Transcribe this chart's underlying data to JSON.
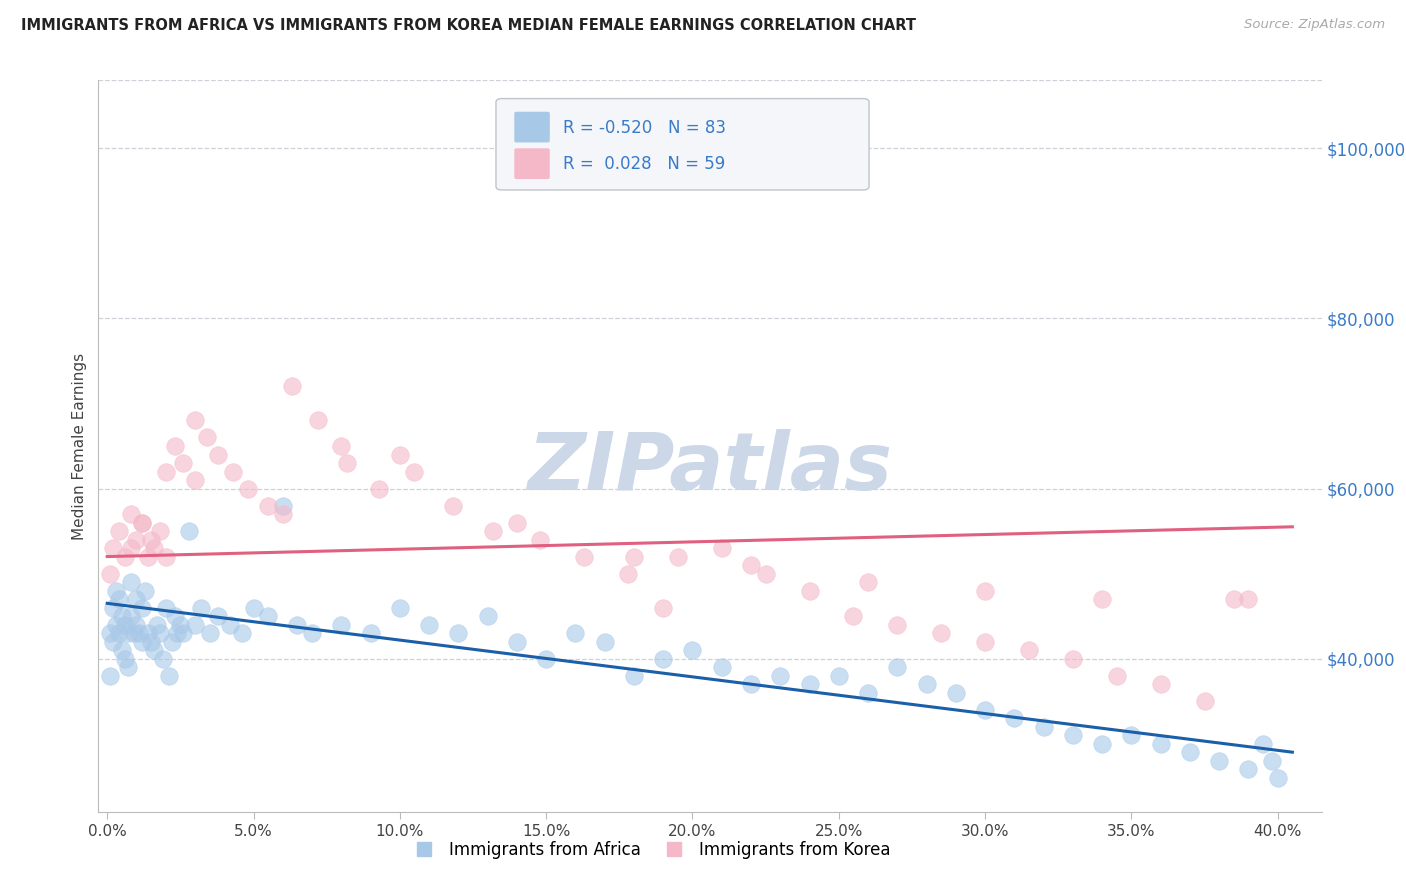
{
  "title": "IMMIGRANTS FROM AFRICA VS IMMIGRANTS FROM KOREA MEDIAN FEMALE EARNINGS CORRELATION CHART",
  "source": "Source: ZipAtlas.com",
  "ylabel": "Median Female Earnings",
  "xlim": [
    -0.003,
    0.415
  ],
  "ylim": [
    22000,
    108000
  ],
  "africa_R": -0.52,
  "africa_N": 83,
  "korea_R": 0.028,
  "korea_N": 59,
  "africa_color": "#a8c8e8",
  "korea_color": "#f4b8c8",
  "africa_line_color": "#1a5fa8",
  "korea_line_color": "#e06080",
  "watermark_text": "ZIPatlas",
  "watermark_color": "#ccd8e8",
  "background_color": "#ffffff",
  "grid_color": "#c8ccd4",
  "ytick_color": "#3a7bc8",
  "xtick_color": "#444444",
  "africa_trend_x": [
    0.0,
    0.405
  ],
  "africa_trend_y": [
    46500,
    29000
  ],
  "korea_trend_x": [
    0.0,
    0.405
  ],
  "korea_trend_y": [
    52000,
    55500
  ],
  "africa_scatter_x": [
    0.001,
    0.001,
    0.002,
    0.002,
    0.003,
    0.003,
    0.004,
    0.004,
    0.005,
    0.005,
    0.006,
    0.006,
    0.007,
    0.007,
    0.008,
    0.008,
    0.009,
    0.01,
    0.01,
    0.011,
    0.012,
    0.012,
    0.013,
    0.014,
    0.015,
    0.016,
    0.017,
    0.018,
    0.019,
    0.02,
    0.021,
    0.022,
    0.023,
    0.024,
    0.025,
    0.026,
    0.028,
    0.03,
    0.032,
    0.035,
    0.038,
    0.042,
    0.046,
    0.05,
    0.055,
    0.06,
    0.065,
    0.07,
    0.08,
    0.09,
    0.1,
    0.11,
    0.12,
    0.13,
    0.14,
    0.15,
    0.16,
    0.17,
    0.18,
    0.19,
    0.2,
    0.21,
    0.22,
    0.23,
    0.24,
    0.25,
    0.26,
    0.27,
    0.28,
    0.29,
    0.3,
    0.31,
    0.32,
    0.33,
    0.34,
    0.35,
    0.36,
    0.37,
    0.38,
    0.39,
    0.395,
    0.398,
    0.4
  ],
  "africa_scatter_y": [
    38000,
    43000,
    42000,
    46000,
    44000,
    48000,
    43000,
    47000,
    41000,
    45000,
    40000,
    44000,
    39000,
    43000,
    45000,
    49000,
    43000,
    47000,
    44000,
    43000,
    46000,
    42000,
    48000,
    43000,
    42000,
    41000,
    44000,
    43000,
    40000,
    46000,
    38000,
    42000,
    45000,
    43000,
    44000,
    43000,
    55000,
    44000,
    46000,
    43000,
    45000,
    44000,
    43000,
    46000,
    45000,
    58000,
    44000,
    43000,
    44000,
    43000,
    46000,
    44000,
    43000,
    45000,
    42000,
    40000,
    43000,
    42000,
    38000,
    40000,
    41000,
    39000,
    37000,
    38000,
    37000,
    38000,
    36000,
    39000,
    37000,
    36000,
    34000,
    33000,
    32000,
    31000,
    30000,
    31000,
    30000,
    29000,
    28000,
    27000,
    30000,
    28000,
    26000
  ],
  "korea_scatter_x": [
    0.001,
    0.002,
    0.004,
    0.006,
    0.008,
    0.01,
    0.012,
    0.014,
    0.016,
    0.018,
    0.02,
    0.023,
    0.026,
    0.03,
    0.034,
    0.038,
    0.043,
    0.048,
    0.055,
    0.063,
    0.072,
    0.082,
    0.093,
    0.105,
    0.118,
    0.132,
    0.148,
    0.163,
    0.178,
    0.195,
    0.21,
    0.225,
    0.24,
    0.255,
    0.27,
    0.285,
    0.3,
    0.315,
    0.33,
    0.345,
    0.36,
    0.375,
    0.385,
    0.39,
    0.015,
    0.02,
    0.06,
    0.1,
    0.14,
    0.18,
    0.22,
    0.26,
    0.3,
    0.34,
    0.008,
    0.012,
    0.03,
    0.08,
    0.19
  ],
  "korea_scatter_y": [
    50000,
    53000,
    55000,
    52000,
    57000,
    54000,
    56000,
    52000,
    53000,
    55000,
    62000,
    65000,
    63000,
    68000,
    66000,
    64000,
    62000,
    60000,
    58000,
    72000,
    68000,
    63000,
    60000,
    62000,
    58000,
    55000,
    54000,
    52000,
    50000,
    52000,
    53000,
    50000,
    48000,
    45000,
    44000,
    43000,
    42000,
    41000,
    40000,
    38000,
    37000,
    35000,
    47000,
    47000,
    54000,
    52000,
    57000,
    64000,
    56000,
    52000,
    51000,
    49000,
    48000,
    47000,
    53000,
    56000,
    61000,
    65000,
    46000
  ],
  "ytick_positions": [
    40000,
    60000,
    80000,
    100000
  ],
  "ytick_labels": [
    "$40,000",
    "$60,000",
    "$80,000",
    "$100,000"
  ],
  "xtick_positions": [
    0.0,
    0.05,
    0.1,
    0.15,
    0.2,
    0.25,
    0.3,
    0.35,
    0.4
  ],
  "xtick_labels": [
    "0.0%",
    "5.0%",
    "10.0%",
    "15.0%",
    "20.0%",
    "25.0%",
    "30.0%",
    "35.0%",
    "40.0%"
  ]
}
